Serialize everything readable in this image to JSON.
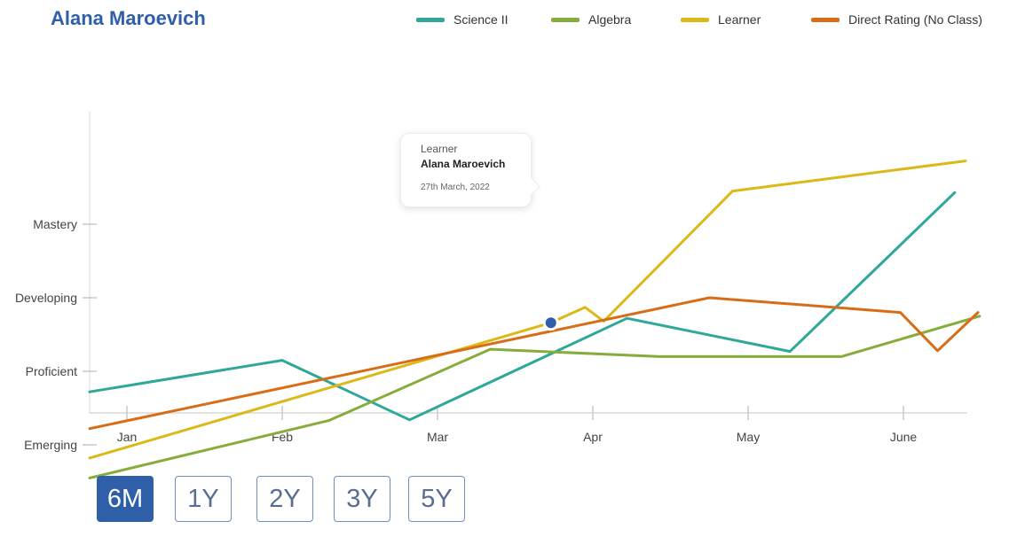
{
  "header": {
    "title": "Alana Maroevich"
  },
  "legend": [
    {
      "label": "Science II",
      "color": "#2fa899"
    },
    {
      "label": "Algebra",
      "color": "#86ad3c"
    },
    {
      "label": "Learner",
      "color": "#dcb818"
    },
    {
      "label": "Direct Rating (No Class)",
      "color": "#d96c16"
    }
  ],
  "tooltip": {
    "series": "Learner",
    "name": "Alana Maroevich",
    "date": "27th March, 2022"
  },
  "range_buttons": [
    {
      "label": "6M",
      "active": true
    },
    {
      "label": "1Y",
      "active": false
    },
    {
      "label": "2Y",
      "active": false
    },
    {
      "label": "3Y",
      "active": false
    },
    {
      "label": "5Y",
      "active": false
    }
  ],
  "chart_data": {
    "type": "line",
    "x_ticks": [
      "Jan",
      "Feb",
      "Mar",
      "Apr",
      "May",
      "June"
    ],
    "y_ticks": [
      "Emerging",
      "Proficient",
      "Developing",
      "Mastery"
    ],
    "y_tick_levels": [
      1,
      2,
      3,
      4
    ],
    "y_tick_display_order": [
      "Mastery",
      "Proficient",
      "Developing",
      "Emerging"
    ],
    "xlim": [
      -0.24,
      5.4
    ],
    "ylim": [
      0.55,
      4.65
    ],
    "grid": false,
    "legend_position": "top",
    "highlight": {
      "series": "Learner",
      "x": 2.73,
      "y": 2.66
    },
    "series": [
      {
        "name": "Science II",
        "color": "#2fa899",
        "points": [
          [
            -0.24,
            1.72
          ],
          [
            1.0,
            2.15
          ],
          [
            1.82,
            1.34
          ],
          [
            3.22,
            2.72
          ],
          [
            4.27,
            2.27
          ],
          [
            5.33,
            4.43
          ]
        ]
      },
      {
        "name": "Algebra",
        "color": "#86ad3c",
        "points": [
          [
            -0.24,
            0.55
          ],
          [
            1.3,
            1.33
          ],
          [
            2.34,
            2.3
          ],
          [
            3.43,
            2.2
          ],
          [
            4.6,
            2.2
          ],
          [
            5.49,
            2.75
          ]
        ]
      },
      {
        "name": "Learner",
        "color": "#dcb818",
        "points": [
          [
            -0.24,
            0.82
          ],
          [
            2.73,
            2.66
          ],
          [
            2.95,
            2.87
          ],
          [
            3.07,
            2.68
          ],
          [
            3.9,
            4.45
          ],
          [
            5.4,
            4.86
          ]
        ]
      },
      {
        "name": "Direct Rating (No Class)",
        "color": "#d96c16",
        "points": [
          [
            -0.24,
            1.22
          ],
          [
            3.75,
            3.0
          ],
          [
            4.98,
            2.8
          ],
          [
            5.22,
            2.28
          ],
          [
            5.48,
            2.8
          ]
        ]
      }
    ]
  }
}
